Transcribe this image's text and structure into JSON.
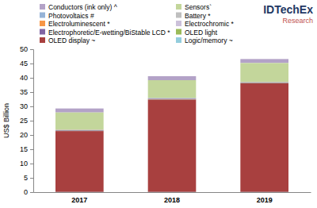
{
  "chart_data": {
    "type": "bar",
    "stacked": true,
    "y_label": "US$ Billion",
    "annotations": [
      "IDTechEx",
      "Research"
    ],
    "categories": [
      "2017",
      "2018",
      "2019"
    ],
    "ylim": [
      0,
      50
    ],
    "yticks": [
      0,
      5,
      10,
      15,
      20,
      25,
      30,
      35,
      40,
      45,
      50
    ],
    "legend": "top-left",
    "series": [
      {
        "name": "Conductors (ink only) ^",
        "color": "#b3a2c7",
        "values": [
          1.4,
          1.4,
          1.4
        ]
      },
      {
        "name": "Sensors`",
        "color": "#c3d69b",
        "values": [
          6.0,
          6.3,
          6.6
        ]
      },
      {
        "name": "Photovoltaics #",
        "color": "#95b3d7",
        "values": [
          0.1,
          0.1,
          0.1
        ]
      },
      {
        "name": "Battery *",
        "color": "#bfbfbf",
        "values": [
          0.05,
          0.05,
          0.05
        ]
      },
      {
        "name": "Electroluminescent *",
        "color": "#f79646",
        "values": [
          0.05,
          0.05,
          0.05
        ]
      },
      {
        "name": "Electrochromic *",
        "color": "#ccc1da",
        "values": [
          0.02,
          0.02,
          0.02
        ]
      },
      {
        "name": "Electrophoretic/E-wetting/BiStable LCD *",
        "color": "#8064a2",
        "values": [
          0.2,
          0.2,
          0.2
        ]
      },
      {
        "name": "OLED light",
        "color": "#9bbb59",
        "values": [
          0.1,
          0.1,
          0.1
        ]
      },
      {
        "name": "OLED display ~",
        "color": "#a8403f",
        "values": [
          21.3,
          32.3,
          38.0
        ]
      },
      {
        "name": "Logic/memory ~",
        "color": "#93cddd",
        "values": [
          0.05,
          0.05,
          0.05
        ]
      }
    ]
  }
}
